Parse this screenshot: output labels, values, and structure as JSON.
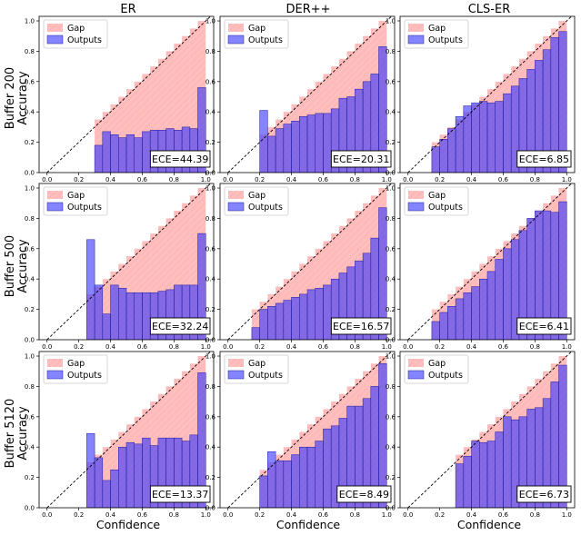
{
  "figure": {
    "column_titles": [
      "ER",
      "DER++",
      "CLS-ER"
    ],
    "row_labels": [
      {
        "line1": "Buffer 200",
        "line2": "Accuracy"
      },
      {
        "line1": "Buffer 500",
        "line2": "Accuracy"
      },
      {
        "line1": "Buffer 5120",
        "line2": "Accuracy"
      }
    ],
    "xlabel": "Confidence",
    "legend": {
      "gap_label": "Gap",
      "outputs_label": "Outputs"
    },
    "colors": {
      "gap": "#ff7f7f",
      "outputs": "#3232ff",
      "outputs_edge": "#1a1aa0",
      "diagonal": "#000000"
    }
  },
  "chart_data": [
    {
      "type": "bar",
      "row": 0,
      "col": 0,
      "ece_label": "ECE=44.39",
      "xlim": [
        -0.05,
        1.05
      ],
      "ylim": [
        0,
        1.03
      ],
      "xticks": [
        "0.0",
        "0.2",
        "0.4",
        "0.6",
        "0.8",
        "1.0"
      ],
      "yticks": [
        "0.0",
        "0.2",
        "0.4",
        "0.6",
        "0.8",
        "1.0"
      ],
      "bins": [
        0.35,
        0.4,
        0.45,
        0.5,
        0.55,
        0.6,
        0.65,
        0.7,
        0.75,
        0.8,
        0.85,
        0.9,
        0.95,
        1.0
      ],
      "accuracy": [
        0.18,
        0.27,
        0.25,
        0.23,
        0.25,
        0.23,
        0.27,
        0.28,
        0.28,
        0.29,
        0.28,
        0.3,
        0.29,
        0.56
      ]
    },
    {
      "type": "bar",
      "row": 0,
      "col": 1,
      "ece_label": "ECE=20.31",
      "xlim": [
        -0.05,
        1.05
      ],
      "ylim": [
        0,
        1.03
      ],
      "xticks": [
        "0.0",
        "0.2",
        "0.4",
        "0.6",
        "0.8",
        "1.0"
      ],
      "yticks": [
        "0.0",
        "0.2",
        "0.4",
        "0.6",
        "0.8",
        "1.0"
      ],
      "bins": [
        0.25,
        0.3,
        0.35,
        0.4,
        0.45,
        0.5,
        0.55,
        0.6,
        0.65,
        0.7,
        0.75,
        0.8,
        0.85,
        0.9,
        0.95,
        1.0
      ],
      "accuracy": [
        0.41,
        0.24,
        0.29,
        0.32,
        0.34,
        0.37,
        0.38,
        0.39,
        0.39,
        0.42,
        0.49,
        0.5,
        0.55,
        0.6,
        0.65,
        0.83
      ]
    },
    {
      "type": "bar",
      "row": 0,
      "col": 2,
      "ece_label": "ECE=6.85",
      "xlim": [
        -0.05,
        1.05
      ],
      "ylim": [
        0,
        1.03
      ],
      "xticks": [
        "0.0",
        "0.2",
        "0.4",
        "0.6",
        "0.8",
        "1.0"
      ],
      "yticks": [
        "0.0",
        "0.2",
        "0.4",
        "0.6",
        "0.8",
        "1.0"
      ],
      "bins": [
        0.2,
        0.25,
        0.3,
        0.35,
        0.4,
        0.45,
        0.5,
        0.55,
        0.6,
        0.65,
        0.7,
        0.75,
        0.8,
        0.85,
        0.9,
        0.95,
        1.0
      ],
      "accuracy": [
        0.17,
        0.22,
        0.29,
        0.37,
        0.44,
        0.46,
        0.47,
        0.46,
        0.47,
        0.52,
        0.57,
        0.62,
        0.68,
        0.74,
        0.81,
        0.89,
        0.93
      ]
    },
    {
      "type": "bar",
      "row": 1,
      "col": 0,
      "ece_label": "ECE=32.24",
      "xlim": [
        -0.05,
        1.05
      ],
      "ylim": [
        0,
        1.03
      ],
      "xticks": [
        "0.0",
        "0.2",
        "0.4",
        "0.6",
        "0.8",
        "1.0"
      ],
      "yticks": [
        "0.0",
        "0.2",
        "0.4",
        "0.6",
        "0.8",
        "1.0"
      ],
      "bins": [
        0.3,
        0.35,
        0.4,
        0.45,
        0.5,
        0.55,
        0.6,
        0.65,
        0.7,
        0.75,
        0.8,
        0.85,
        0.9,
        0.95,
        1.0
      ],
      "accuracy": [
        0.66,
        0.36,
        0.17,
        0.36,
        0.34,
        0.31,
        0.31,
        0.31,
        0.31,
        0.32,
        0.33,
        0.36,
        0.36,
        0.36,
        0.7
      ]
    },
    {
      "type": "bar",
      "row": 1,
      "col": 1,
      "ece_label": "ECE=16.57",
      "xlim": [
        -0.05,
        1.05
      ],
      "ylim": [
        0,
        1.03
      ],
      "xticks": [
        "0.0",
        "0.2",
        "0.4",
        "0.6",
        "0.8",
        "1.0"
      ],
      "yticks": [
        "0.0",
        "0.2",
        "0.4",
        "0.6",
        "0.8",
        "1.0"
      ],
      "bins": [
        0.2,
        0.25,
        0.3,
        0.35,
        0.4,
        0.45,
        0.5,
        0.55,
        0.6,
        0.65,
        0.7,
        0.75,
        0.8,
        0.85,
        0.9,
        0.95,
        1.0
      ],
      "accuracy": [
        0.08,
        0.2,
        0.22,
        0.24,
        0.26,
        0.28,
        0.3,
        0.33,
        0.34,
        0.36,
        0.4,
        0.44,
        0.48,
        0.52,
        0.57,
        0.67,
        0.87
      ]
    },
    {
      "type": "bar",
      "row": 1,
      "col": 2,
      "ece_label": "ECE=6.41",
      "xlim": [
        -0.05,
        1.05
      ],
      "ylim": [
        0,
        1.03
      ],
      "xticks": [
        "0.0",
        "0.2",
        "0.4",
        "0.6",
        "0.8",
        "1.0"
      ],
      "yticks": [
        "0.0",
        "0.2",
        "0.4",
        "0.6",
        "0.8",
        "1.0"
      ],
      "bins": [
        0.2,
        0.25,
        0.3,
        0.35,
        0.4,
        0.45,
        0.5,
        0.55,
        0.6,
        0.65,
        0.7,
        0.75,
        0.8,
        0.85,
        0.9,
        0.95,
        1.0
      ],
      "accuracy": [
        0.12,
        0.18,
        0.22,
        0.27,
        0.31,
        0.35,
        0.4,
        0.45,
        0.53,
        0.6,
        0.66,
        0.72,
        0.8,
        0.85,
        0.85,
        0.84,
        0.91
      ]
    },
    {
      "type": "bar",
      "row": 2,
      "col": 0,
      "ece_label": "ECE=13.37",
      "xlim": [
        -0.05,
        1.05
      ],
      "ylim": [
        0,
        1.03
      ],
      "xticks": [
        "0.0",
        "0.2",
        "0.4",
        "0.6",
        "0.8",
        "1.0"
      ],
      "yticks": [
        "0.0",
        "0.2",
        "0.4",
        "0.6",
        "0.8",
        "1.0"
      ],
      "bins": [
        0.3,
        0.35,
        0.4,
        0.45,
        0.5,
        0.55,
        0.6,
        0.65,
        0.7,
        0.75,
        0.8,
        0.85,
        0.9,
        0.95,
        1.0
      ],
      "accuracy": [
        0.49,
        0.33,
        0.18,
        0.25,
        0.4,
        0.43,
        0.42,
        0.46,
        0.41,
        0.46,
        0.46,
        0.46,
        0.44,
        0.48,
        0.89
      ]
    },
    {
      "type": "bar",
      "row": 2,
      "col": 1,
      "ece_label": "ECE=8.49",
      "xlim": [
        -0.05,
        1.05
      ],
      "ylim": [
        0,
        1.03
      ],
      "xticks": [
        "0.0",
        "0.2",
        "0.4",
        "0.6",
        "0.8",
        "1.0"
      ],
      "yticks": [
        "0.0",
        "0.2",
        "0.4",
        "0.6",
        "0.8",
        "1.0"
      ],
      "bins": [
        0.25,
        0.3,
        0.35,
        0.4,
        0.45,
        0.5,
        0.55,
        0.6,
        0.65,
        0.7,
        0.75,
        0.8,
        0.85,
        0.9,
        0.95,
        1.0
      ],
      "accuracy": [
        0.21,
        0.37,
        0.31,
        0.31,
        0.35,
        0.4,
        0.4,
        0.44,
        0.52,
        0.54,
        0.59,
        0.67,
        0.67,
        0.72,
        0.8,
        0.95
      ]
    },
    {
      "type": "bar",
      "row": 2,
      "col": 2,
      "ece_label": "ECE=6.73",
      "xlim": [
        -0.05,
        1.05
      ],
      "ylim": [
        0,
        1.03
      ],
      "xticks": [
        "0.0",
        "0.2",
        "0.4",
        "0.6",
        "0.8",
        "1.0"
      ],
      "yticks": [
        "0.0",
        "0.2",
        "0.4",
        "0.6",
        "0.8",
        "1.0"
      ],
      "bins": [
        0.35,
        0.4,
        0.45,
        0.5,
        0.55,
        0.6,
        0.65,
        0.7,
        0.75,
        0.8,
        0.85,
        0.9,
        0.95,
        1.0
      ],
      "accuracy": [
        0.29,
        0.34,
        0.44,
        0.43,
        0.44,
        0.5,
        0.6,
        0.58,
        0.6,
        0.65,
        0.66,
        0.72,
        0.83,
        0.94
      ]
    }
  ]
}
